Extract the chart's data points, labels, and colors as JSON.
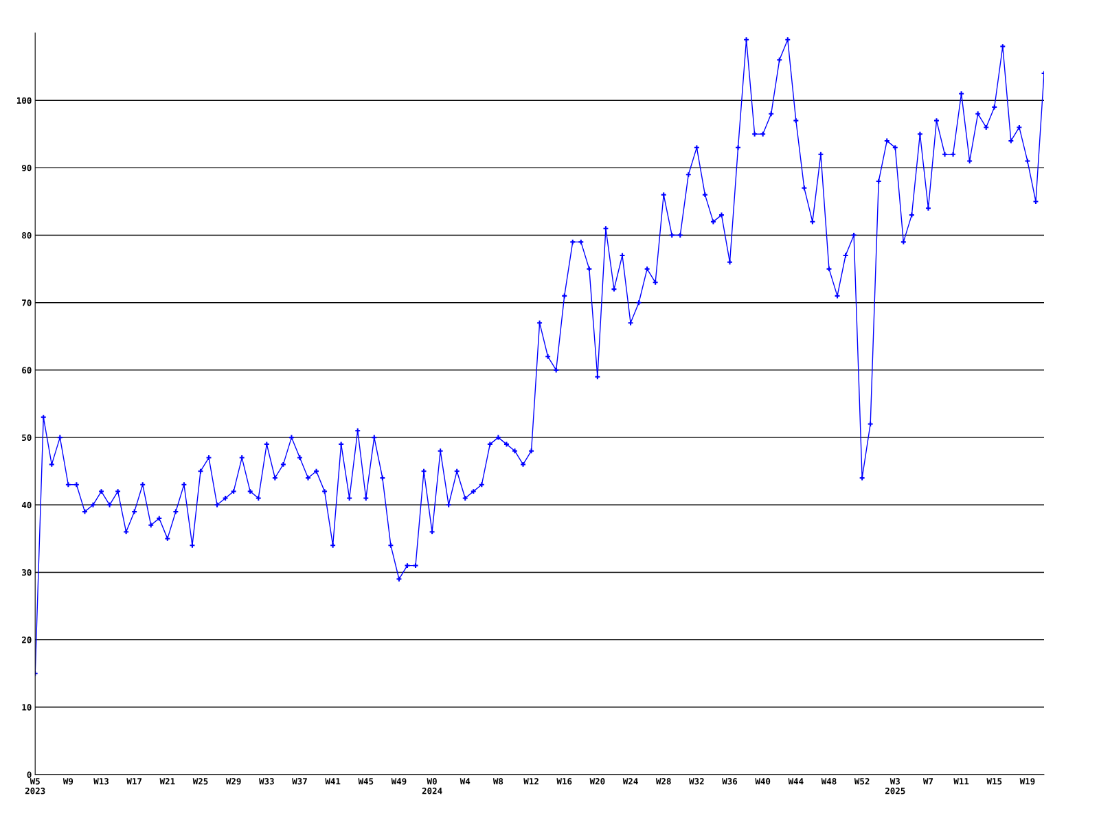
{
  "chart_data": {
    "type": "line",
    "categories": [
      "W5\n2023",
      null,
      null,
      null,
      "W9",
      null,
      null,
      null,
      "W13",
      null,
      null,
      null,
      "W17",
      null,
      null,
      null,
      "W21",
      null,
      null,
      null,
      "W25",
      null,
      null,
      null,
      "W29",
      null,
      null,
      null,
      "W33",
      null,
      null,
      null,
      "W37",
      null,
      null,
      null,
      "W41",
      null,
      null,
      null,
      "W45",
      null,
      null,
      null,
      "W49",
      null,
      null,
      null,
      "W0\n2024",
      null,
      null,
      null,
      "W4",
      null,
      null,
      null,
      "W8",
      null,
      null,
      null,
      "W12",
      null,
      null,
      null,
      "W16",
      null,
      null,
      null,
      "W20",
      null,
      null,
      null,
      "W24",
      null,
      null,
      null,
      "W28",
      null,
      null,
      null,
      "W32",
      null,
      null,
      null,
      "W36",
      null,
      null,
      null,
      "W40",
      null,
      null,
      null,
      "W44",
      null,
      null,
      null,
      "W48",
      null,
      null,
      null,
      "W52",
      null,
      null,
      null,
      "W3\n2025",
      null,
      null,
      null,
      "W7",
      null,
      null,
      null,
      "W11",
      null,
      null,
      null,
      "W15",
      null,
      null,
      null,
      "W19",
      null,
      null
    ],
    "series": [
      {
        "color": "#0000ff",
        "values": [
          15,
          53,
          46,
          50,
          43,
          43,
          39,
          40,
          42,
          40,
          42,
          36,
          39,
          43,
          37,
          38,
          35,
          39,
          43,
          34,
          45,
          47,
          40,
          41,
          42,
          47,
          42,
          41,
          49,
          44,
          46,
          50,
          47,
          44,
          45,
          42,
          34,
          49,
          41,
          51,
          41,
          50,
          44,
          34,
          29,
          31,
          31,
          45,
          36,
          48,
          40,
          45,
          41,
          42,
          43,
          49,
          50,
          49,
          48,
          46,
          48,
          67,
          62,
          60,
          71,
          79,
          79,
          75,
          59,
          81,
          72,
          77,
          67,
          70,
          75,
          73,
          86,
          80,
          80,
          89,
          93,
          86,
          82,
          83,
          76,
          93,
          109,
          95,
          95,
          98,
          106,
          109,
          97,
          87,
          82,
          92,
          75,
          71,
          77,
          80,
          44,
          52,
          88,
          94,
          93,
          79,
          83,
          95,
          84,
          97,
          92,
          92,
          101,
          91,
          98,
          96,
          99,
          108,
          94,
          96,
          91,
          85,
          104
        ]
      }
    ],
    "ylim": [
      0,
      110
    ],
    "yticks": [
      0,
      10,
      20,
      30,
      40,
      50,
      60,
      70,
      80,
      90,
      100
    ],
    "grid": "y",
    "marker": "cross",
    "line_style": "solid",
    "legend": false
  }
}
